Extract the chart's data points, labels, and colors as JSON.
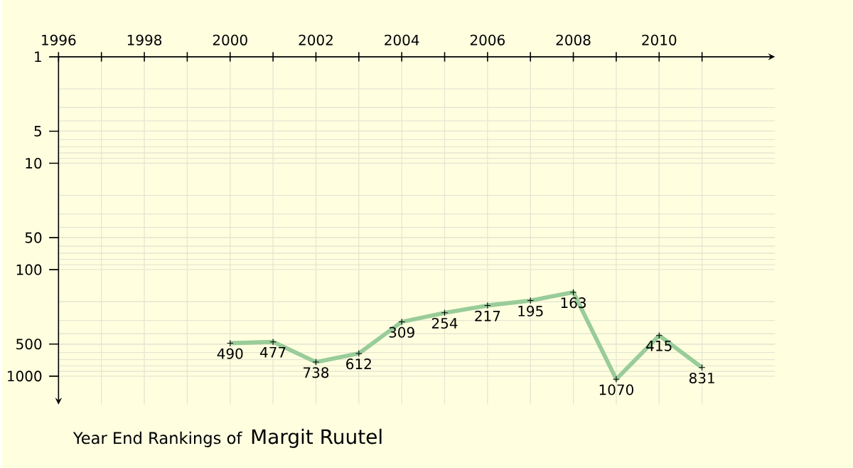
{
  "chart_data": {
    "type": "line",
    "title": "Year End Rankings of",
    "subtitle": "Margit Ruutel",
    "x": [
      2000,
      2001,
      2002,
      2003,
      2004,
      2005,
      2006,
      2007,
      2008,
      2009,
      2010,
      2011
    ],
    "series": [
      {
        "color": "#99cc99",
        "values": [
          490,
          477,
          738,
          612,
          309,
          254,
          217,
          195,
          163,
          1070,
          415,
          831
        ]
      }
    ],
    "xlim": [
      1996,
      2012.7
    ],
    "xticks": [
      1996,
      {
        "value": 1997,
        "label": null
      },
      1998,
      {
        "value": 1999,
        "label": null
      },
      2000,
      {
        "value": 2001,
        "label": null
      },
      2002,
      {
        "value": 2003,
        "label": null
      },
      2004,
      {
        "value": 2005,
        "label": null
      },
      2006,
      {
        "value": 2007,
        "label": null
      },
      2008,
      {
        "value": 2009,
        "label": null
      },
      2010,
      {
        "value": 2011,
        "label": null
      }
    ],
    "ylim": [
      1850,
      1
    ],
    "yticks": [
      1,
      5,
      10,
      50,
      100,
      500,
      1000
    ],
    "log": true,
    "grid": true,
    "marker": "cross",
    "line_style": "solid",
    "data_labels": true
  }
}
